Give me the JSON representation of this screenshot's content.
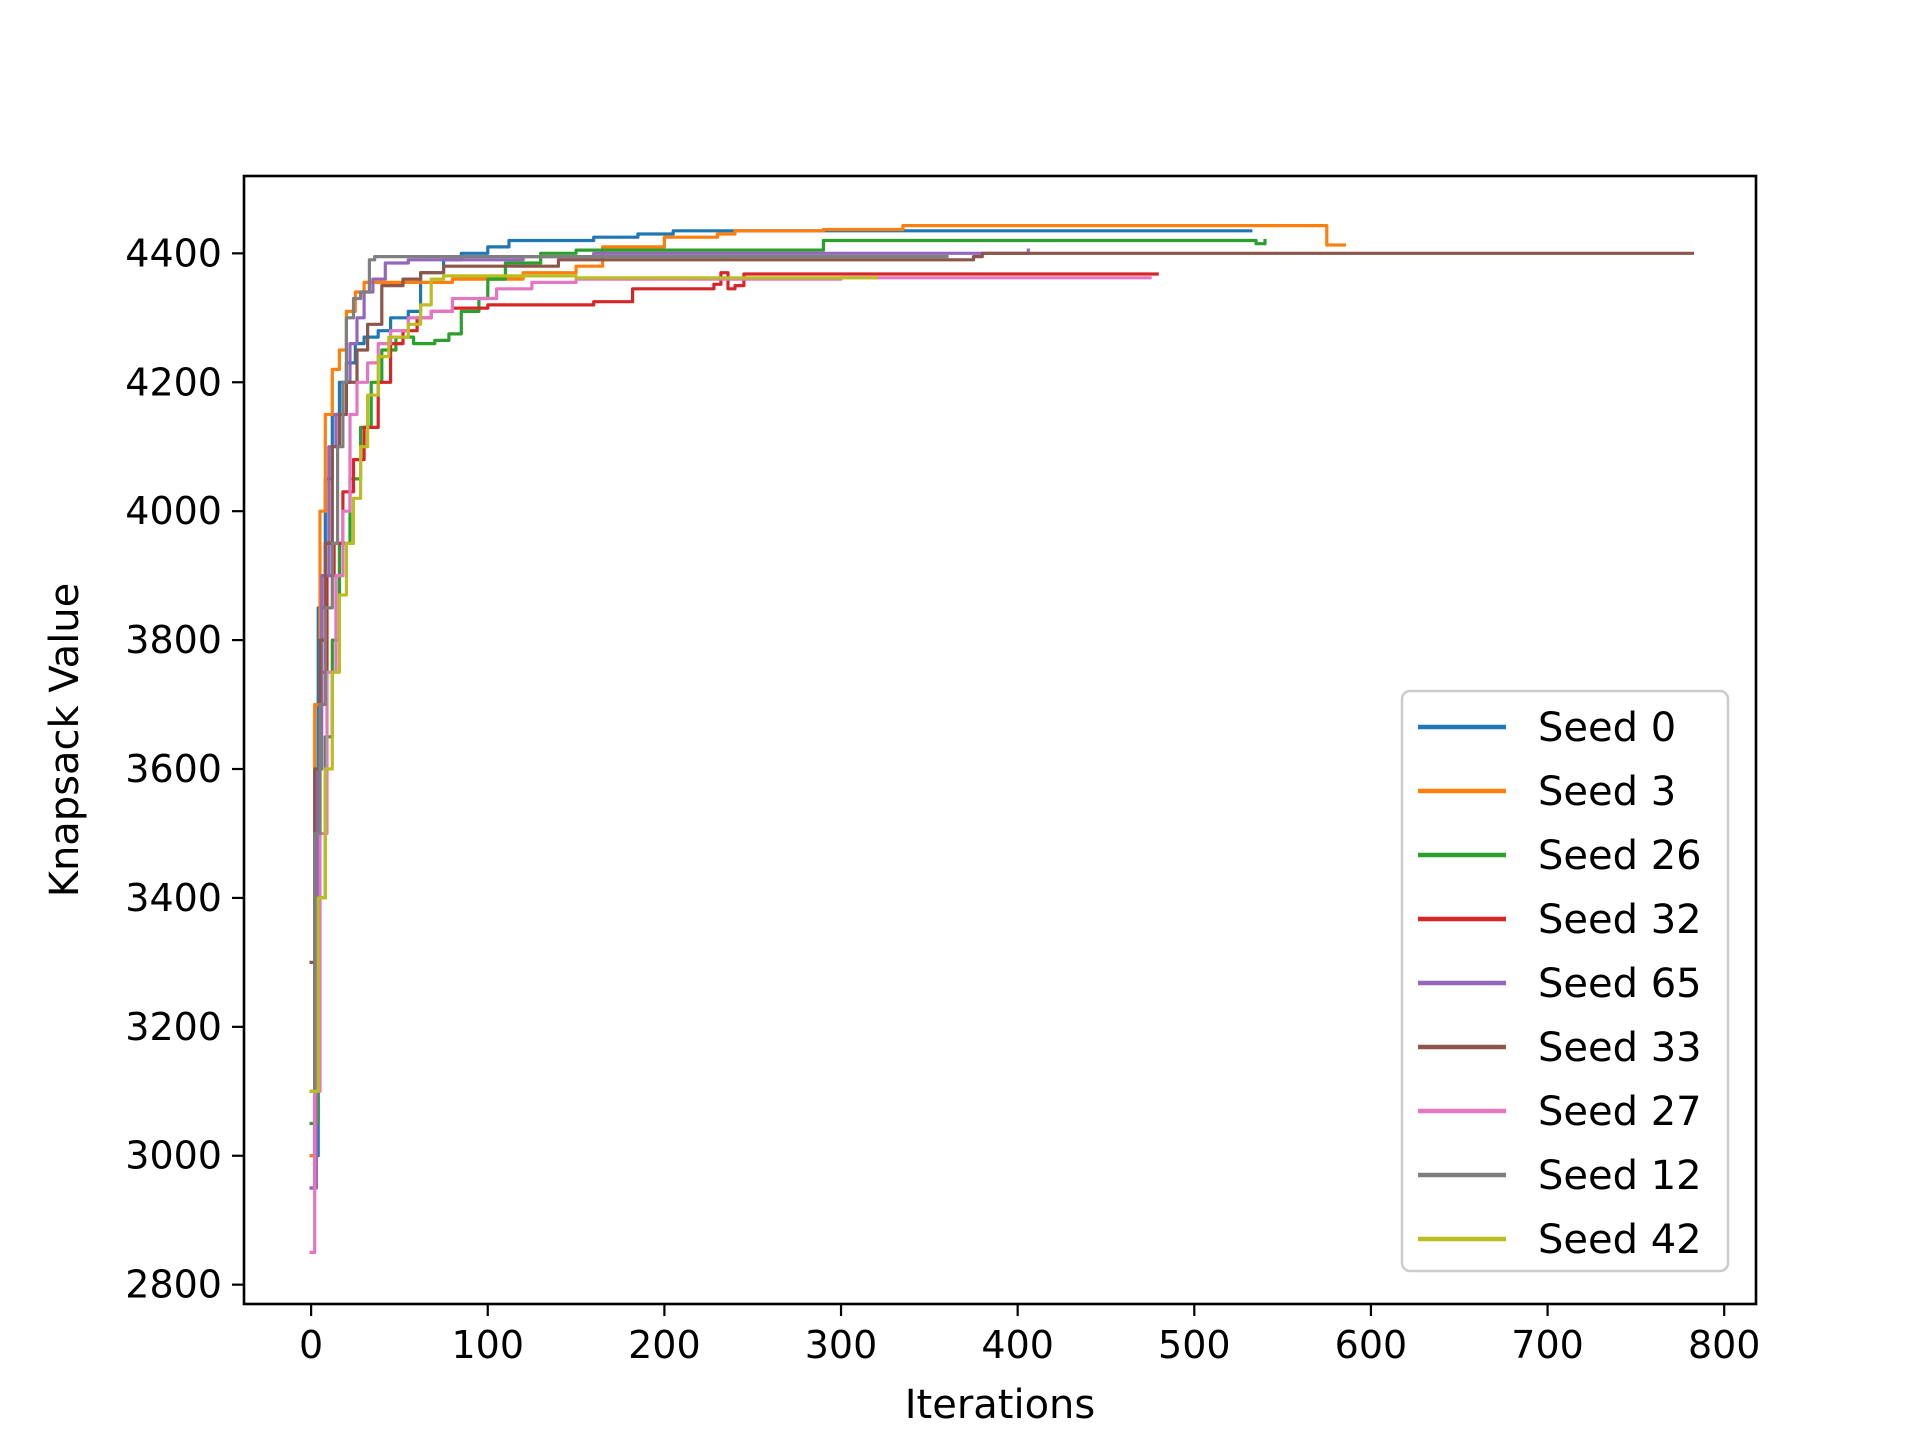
{
  "chart_data": {
    "type": "line",
    "title": "",
    "xlabel": "Iterations",
    "ylabel": "Knapsack Value",
    "xlim": [
      -38,
      818
    ],
    "ylim": [
      2770,
      4520
    ],
    "xticks": [
      0,
      100,
      200,
      300,
      400,
      500,
      600,
      700,
      800
    ],
    "yticks": [
      2800,
      3000,
      3200,
      3400,
      3600,
      3800,
      4000,
      4200,
      4400
    ],
    "grid": false,
    "legend_position": "lower right",
    "series": [
      {
        "name": "Seed 0",
        "color": "#1f77b4",
        "points": [
          [
            0,
            3000
          ],
          [
            4,
            3850
          ],
          [
            8,
            4050
          ],
          [
            12,
            4150
          ],
          [
            16,
            4200
          ],
          [
            20,
            4230
          ],
          [
            25,
            4260
          ],
          [
            30,
            4270
          ],
          [
            38,
            4280
          ],
          [
            45,
            4300
          ],
          [
            55,
            4310
          ],
          [
            62,
            4370
          ],
          [
            75,
            4390
          ],
          [
            85,
            4400
          ],
          [
            100,
            4410
          ],
          [
            112,
            4420
          ],
          [
            160,
            4425
          ],
          [
            185,
            4430
          ],
          [
            205,
            4435
          ],
          [
            225,
            4435
          ],
          [
            230,
            4435
          ],
          [
            532,
            4435
          ]
        ]
      },
      {
        "name": "Seed 3",
        "color": "#ff7f0e",
        "points": [
          [
            0,
            3000
          ],
          [
            2,
            3700
          ],
          [
            5,
            4000
          ],
          [
            8,
            4150
          ],
          [
            12,
            4220
          ],
          [
            16,
            4250
          ],
          [
            20,
            4310
          ],
          [
            25,
            4340
          ],
          [
            30,
            4355
          ],
          [
            80,
            4360
          ],
          [
            120,
            4370
          ],
          [
            150,
            4380
          ],
          [
            165,
            4410
          ],
          [
            200,
            4425
          ],
          [
            230,
            4430
          ],
          [
            240,
            4435
          ],
          [
            290,
            4437
          ],
          [
            335,
            4443
          ],
          [
            572,
            4443
          ],
          [
            575,
            4413
          ],
          [
            585,
            4413
          ]
        ]
      },
      {
        "name": "Seed 26",
        "color": "#2ca02c",
        "points": [
          [
            0,
            3050
          ],
          [
            4,
            3400
          ],
          [
            8,
            3650
          ],
          [
            12,
            3800
          ],
          [
            16,
            3950
          ],
          [
            22,
            4050
          ],
          [
            28,
            4130
          ],
          [
            34,
            4200
          ],
          [
            40,
            4250
          ],
          [
            48,
            4270
          ],
          [
            58,
            4260
          ],
          [
            70,
            4265
          ],
          [
            78,
            4275
          ],
          [
            85,
            4310
          ],
          [
            95,
            4330
          ],
          [
            100,
            4360
          ],
          [
            110,
            4385
          ],
          [
            130,
            4400
          ],
          [
            150,
            4405
          ],
          [
            200,
            4405
          ],
          [
            290,
            4420
          ],
          [
            530,
            4420
          ],
          [
            535,
            4415
          ],
          [
            540,
            4420
          ]
        ]
      },
      {
        "name": "Seed 32",
        "color": "#d62728",
        "points": [
          [
            0,
            2950
          ],
          [
            2,
            3500
          ],
          [
            5,
            3750
          ],
          [
            9,
            3900
          ],
          [
            13,
            3950
          ],
          [
            18,
            4030
          ],
          [
            24,
            4080
          ],
          [
            30,
            4130
          ],
          [
            38,
            4200
          ],
          [
            45,
            4260
          ],
          [
            52,
            4280
          ],
          [
            60,
            4300
          ],
          [
            68,
            4310
          ],
          [
            80,
            4315
          ],
          [
            100,
            4320
          ],
          [
            160,
            4325
          ],
          [
            182,
            4345
          ],
          [
            228,
            4352
          ],
          [
            232,
            4370
          ],
          [
            236,
            4345
          ],
          [
            240,
            4350
          ],
          [
            245,
            4368
          ],
          [
            479,
            4368
          ]
        ]
      },
      {
        "name": "Seed 65",
        "color": "#9467bd",
        "points": [
          [
            0,
            2950
          ],
          [
            3,
            3600
          ],
          [
            6,
            3900
          ],
          [
            10,
            4100
          ],
          [
            14,
            4150
          ],
          [
            18,
            4200
          ],
          [
            22,
            4260
          ],
          [
            26,
            4300
          ],
          [
            30,
            4340
          ],
          [
            35,
            4360
          ],
          [
            42,
            4385
          ],
          [
            55,
            4390
          ],
          [
            120,
            4395
          ],
          [
            160,
            4400
          ],
          [
            406,
            4405
          ]
        ]
      },
      {
        "name": "Seed 33",
        "color": "#8c564b",
        "points": [
          [
            0,
            3300
          ],
          [
            2,
            3600
          ],
          [
            5,
            3800
          ],
          [
            8,
            3950
          ],
          [
            12,
            4100
          ],
          [
            16,
            4150
          ],
          [
            20,
            4200
          ],
          [
            26,
            4250
          ],
          [
            32,
            4290
          ],
          [
            40,
            4350
          ],
          [
            52,
            4360
          ],
          [
            62,
            4370
          ],
          [
            75,
            4380
          ],
          [
            120,
            4380
          ],
          [
            140,
            4390
          ],
          [
            375,
            4395
          ],
          [
            380,
            4400
          ],
          [
            782,
            4400
          ]
        ]
      },
      {
        "name": "Seed 27",
        "color": "#e377c2",
        "points": [
          [
            0,
            2850
          ],
          [
            2,
            3100
          ],
          [
            5,
            3500
          ],
          [
            9,
            3750
          ],
          [
            14,
            3900
          ],
          [
            18,
            4000
          ],
          [
            22,
            4150
          ],
          [
            26,
            4200
          ],
          [
            32,
            4230
          ],
          [
            38,
            4260
          ],
          [
            45,
            4280
          ],
          [
            55,
            4300
          ],
          [
            68,
            4310
          ],
          [
            80,
            4330
          ],
          [
            105,
            4345
          ],
          [
            125,
            4355
          ],
          [
            150,
            4360
          ],
          [
            200,
            4360
          ],
          [
            300,
            4362
          ],
          [
            475,
            4362
          ]
        ]
      },
      {
        "name": "Seed 12",
        "color": "#7f7f7f",
        "points": [
          [
            0,
            3100
          ],
          [
            2,
            3500
          ],
          [
            5,
            3700
          ],
          [
            8,
            3850
          ],
          [
            12,
            3950
          ],
          [
            15,
            4100
          ],
          [
            18,
            4200
          ],
          [
            20,
            4300
          ],
          [
            24,
            4330
          ],
          [
            28,
            4340
          ],
          [
            33,
            4390
          ],
          [
            36,
            4395
          ],
          [
            85,
            4395
          ],
          [
            360,
            4395
          ]
        ]
      },
      {
        "name": "Seed 42",
        "color": "#bcbd22",
        "points": [
          [
            0,
            3100
          ],
          [
            4,
            3400
          ],
          [
            8,
            3600
          ],
          [
            12,
            3750
          ],
          [
            16,
            3870
          ],
          [
            20,
            3950
          ],
          [
            24,
            4020
          ],
          [
            28,
            4100
          ],
          [
            32,
            4180
          ],
          [
            38,
            4240
          ],
          [
            44,
            4270
          ],
          [
            55,
            4290
          ],
          [
            62,
            4320
          ],
          [
            68,
            4360
          ],
          [
            75,
            4365
          ],
          [
            150,
            4362
          ],
          [
            320,
            4362
          ]
        ]
      }
    ]
  }
}
